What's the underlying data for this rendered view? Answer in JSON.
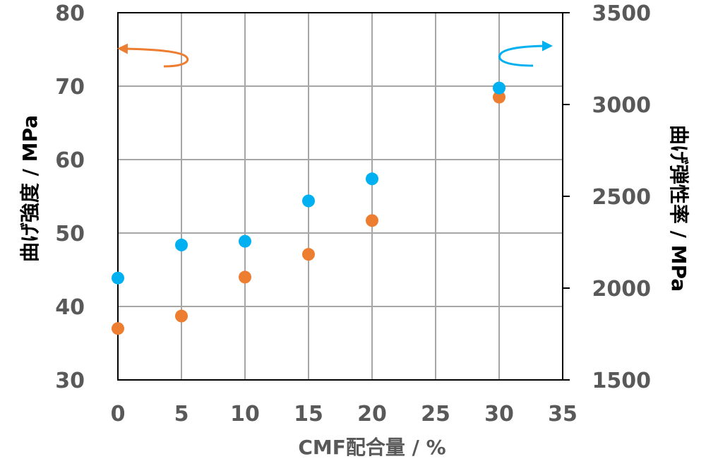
{
  "chart_data": {
    "type": "scatter",
    "x_label": "CMF配合量 / %",
    "y_left_label": "曲げ強度 / MPa",
    "y_right_label": "曲げ弾性率 / MPa",
    "x_range": [
      0,
      35
    ],
    "x_ticks": [
      "0",
      "5",
      "10",
      "15",
      "20",
      "25",
      "30",
      "35"
    ],
    "y_left_range": [
      30,
      80
    ],
    "y_left_ticks": [
      "30",
      "40",
      "50",
      "60",
      "70",
      "80"
    ],
    "y_right_range": [
      1500,
      3500
    ],
    "y_right_ticks": [
      "1500",
      "2000",
      "2500",
      "3000",
      "3500"
    ],
    "grid": true,
    "series": [
      {
        "axis": "left",
        "color": "#ED7D31",
        "points": [
          {
            "x": 0,
            "y": 37.0
          },
          {
            "x": 5,
            "y": 38.7
          },
          {
            "x": 10,
            "y": 44.0
          },
          {
            "x": 15,
            "y": 47.1
          },
          {
            "x": 20,
            "y": 51.7
          },
          {
            "x": 30,
            "y": 68.5
          }
        ]
      },
      {
        "axis": "right",
        "color": "#00B0F0",
        "points": [
          {
            "x": 0,
            "y": 2055
          },
          {
            "x": 5,
            "y": 2235
          },
          {
            "x": 10,
            "y": 2255
          },
          {
            "x": 15,
            "y": 2475
          },
          {
            "x": 20,
            "y": 2595
          },
          {
            "x": 30,
            "y": 3090
          }
        ]
      }
    ],
    "axis_indicators": [
      {
        "axis": "left",
        "color": "#ED7D31",
        "direction": "left"
      },
      {
        "axis": "right",
        "color": "#00B0F0",
        "direction": "right"
      }
    ]
  }
}
